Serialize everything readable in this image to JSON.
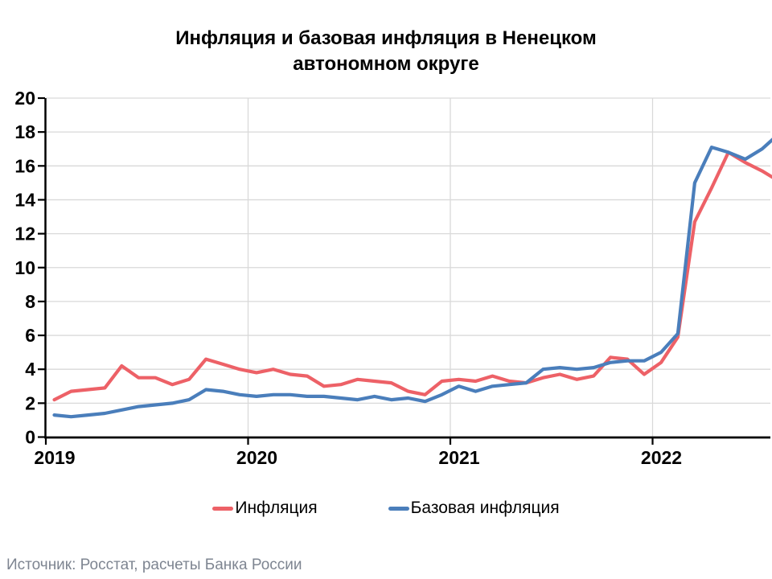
{
  "title": "Инфляция и базовая инфляция в Ненецком\nавтономном округе",
  "source_note": "Источник: Росстат, расчеты Банка России",
  "chart_data": {
    "type": "line",
    "frequency": "monthly",
    "x_start": "2019-01",
    "x_end": "2022-08",
    "x_tick_labels": [
      "2019",
      "2020",
      "2021",
      "2022"
    ],
    "y_ticks": [
      0,
      2,
      4,
      6,
      8,
      10,
      12,
      14,
      16,
      18,
      20
    ],
    "ylim": [
      0,
      20
    ],
    "grid": true,
    "legend_position": "bottom",
    "series": [
      {
        "name": "Инфляция",
        "color": "#ED6167",
        "values": [
          2.2,
          2.7,
          2.8,
          2.9,
          4.2,
          3.5,
          3.5,
          3.1,
          3.4,
          4.6,
          4.3,
          4.0,
          3.8,
          4.0,
          3.7,
          3.6,
          3.0,
          3.1,
          3.4,
          3.3,
          3.2,
          2.7,
          2.5,
          3.3,
          3.4,
          3.3,
          3.6,
          3.3,
          3.2,
          3.5,
          3.7,
          3.4,
          3.6,
          4.7,
          4.6,
          3.7,
          4.4,
          5.9,
          12.7,
          14.7,
          16.8,
          16.2,
          15.7,
          15.1
        ]
      },
      {
        "name": "Базовая инфляция",
        "color": "#4A7EBB",
        "values": [
          1.3,
          1.2,
          1.3,
          1.4,
          1.6,
          1.8,
          1.9,
          2.0,
          2.2,
          2.8,
          2.7,
          2.5,
          2.4,
          2.5,
          2.5,
          2.4,
          2.4,
          2.3,
          2.2,
          2.4,
          2.2,
          2.3,
          2.1,
          2.5,
          3.0,
          2.7,
          3.0,
          3.1,
          3.2,
          4.0,
          4.1,
          4.0,
          4.1,
          4.4,
          4.5,
          4.5,
          5.0,
          6.1,
          15.0,
          17.1,
          16.8,
          16.4,
          17.0,
          17.9
        ]
      }
    ]
  }
}
